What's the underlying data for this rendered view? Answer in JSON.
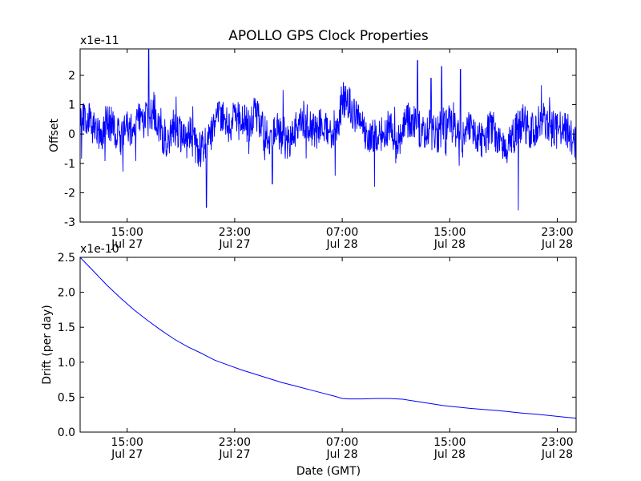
{
  "chart_data": [
    {
      "type": "line",
      "title": "APOLLO GPS Clock Properties",
      "ylabel": "Offset",
      "xlabel": "",
      "multiplier_label": "x1e-11",
      "x_unit": "hours",
      "xlim": [
        11.5,
        48.4
      ],
      "ylim": [
        -3,
        2.9
      ],
      "y_ticks": [
        -3,
        -2,
        -1,
        0,
        1,
        2
      ],
      "y_tick_labels": [
        "-3",
        "-2",
        "-1",
        "0",
        "1",
        "2"
      ],
      "x_ticks": [
        {
          "x": 15,
          "line1": "15:00",
          "line2": "Jul 27"
        },
        {
          "x": 23,
          "line1": "23:00",
          "line2": "Jul 27"
        },
        {
          "x": 31,
          "line1": "07:00",
          "line2": "Jul 28"
        },
        {
          "x": 39,
          "line1": "15:00",
          "line2": "Jul 28"
        },
        {
          "x": 47,
          "line1": "23:00",
          "line2": "Jul 28"
        }
      ],
      "series": [
        {
          "name": "Offset",
          "color": "#0000ff",
          "x": [
            11.5,
            12.1,
            12.5,
            13.0,
            13.5,
            14.0,
            14.5,
            15.0,
            15.5,
            16.0,
            16.5,
            17.0,
            17.5,
            18.0,
            18.5,
            19.0,
            19.5,
            20.0,
            20.5,
            21.0,
            21.5,
            22.0,
            22.5,
            23.0,
            23.5,
            24.0,
            24.5,
            25.0,
            25.5,
            26.0,
            26.5,
            27.0,
            27.5,
            28.0,
            28.5,
            29.0,
            29.5,
            30.0,
            30.5,
            31.0,
            31.5,
            32.0,
            32.5,
            33.0,
            33.5,
            34.0,
            34.5,
            35.0,
            35.5,
            36.0,
            36.5,
            37.0,
            37.5,
            38.0,
            38.5,
            39.0,
            39.5,
            40.0,
            40.5,
            41.0,
            41.5,
            42.0,
            42.5,
            43.0,
            43.5,
            44.0,
            44.5,
            45.0,
            45.5,
            46.0,
            46.5,
            47.0,
            47.5,
            48.0,
            48.4
          ],
          "y": [
            0.4,
            0.6,
            0.2,
            -0.1,
            0.5,
            0.2,
            -0.2,
            0.3,
            0.0,
            0.6,
            0.4,
            0.8,
            0.1,
            -0.3,
            0.3,
            -0.1,
            0.2,
            -0.4,
            -0.6,
            -0.2,
            0.4,
            0.6,
            0.2,
            0.5,
            0.4,
            0.3,
            0.8,
            0.2,
            -0.2,
            0.3,
            -0.1,
            -0.4,
            0.1,
            0.6,
            0.3,
            0.0,
            0.5,
            0.1,
            -0.2,
            1.2,
            1.0,
            0.5,
            0.2,
            -0.3,
            0.1,
            -0.1,
            0.3,
            -0.4,
            0.1,
            0.5,
            0.3,
            0.0,
            0.2,
            -0.1,
            0.3,
            0.4,
            0.1,
            -0.2,
            0.3,
            0.0,
            -0.3,
            0.2,
            0.0,
            -0.6,
            -0.3,
            0.2,
            0.4,
            0.1,
            0.3,
            0.5,
            0.2,
            0.1,
            0.3,
            0.0,
            -0.4
          ]
        }
      ]
    },
    {
      "type": "line",
      "title": "",
      "ylabel": "Drift (per day)",
      "xlabel": "Date (GMT)",
      "multiplier_label": "x1e-10",
      "x_unit": "hours",
      "xlim": [
        11.5,
        48.4
      ],
      "ylim": [
        0.0,
        2.5
      ],
      "y_ticks": [
        0.0,
        0.5,
        1.0,
        1.5,
        2.0,
        2.5
      ],
      "y_tick_labels": [
        "0.0",
        "0.5",
        "1.0",
        "1.5",
        "2.0",
        "2.5"
      ],
      "x_ticks": [
        {
          "x": 15,
          "line1": "15:00",
          "line2": "Jul 27"
        },
        {
          "x": 23,
          "line1": "23:00",
          "line2": "Jul 27"
        },
        {
          "x": 31,
          "line1": "07:00",
          "line2": "Jul 28"
        },
        {
          "x": 39,
          "line1": "15:00",
          "line2": "Jul 28"
        },
        {
          "x": 47,
          "line1": "23:00",
          "line2": "Jul 28"
        }
      ],
      "series": [
        {
          "name": "Drift",
          "color": "#0000ff",
          "x": [
            11.5,
            12.5,
            13.5,
            14.5,
            15.5,
            16.5,
            17.5,
            18.5,
            19.5,
            20.5,
            21.5,
            22.5,
            23.5,
            24.5,
            25.5,
            26.5,
            27.5,
            28.5,
            29.5,
            30.5,
            31.0,
            31.5,
            32.5,
            33.5,
            34.5,
            35.5,
            36.5,
            37.5,
            38.5,
            39.5,
            40.5,
            41.5,
            42.5,
            43.5,
            44.5,
            45.5,
            46.5,
            47.5,
            48.4
          ],
          "y": [
            2.5,
            2.3,
            2.1,
            1.92,
            1.75,
            1.6,
            1.46,
            1.33,
            1.22,
            1.13,
            1.03,
            0.96,
            0.89,
            0.83,
            0.77,
            0.71,
            0.66,
            0.61,
            0.56,
            0.51,
            0.48,
            0.475,
            0.475,
            0.48,
            0.48,
            0.47,
            0.44,
            0.41,
            0.38,
            0.36,
            0.34,
            0.325,
            0.31,
            0.29,
            0.27,
            0.255,
            0.235,
            0.215,
            0.2
          ]
        }
      ]
    }
  ]
}
